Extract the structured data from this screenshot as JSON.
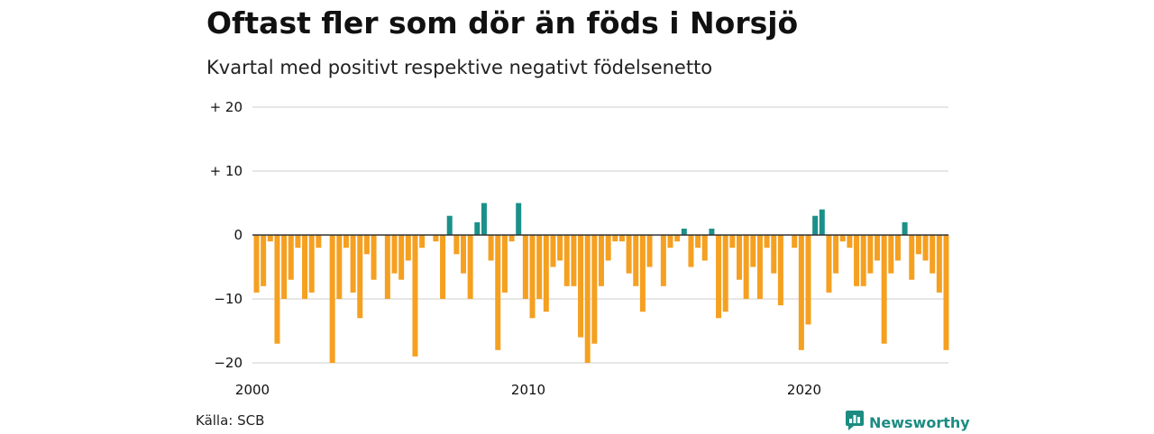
{
  "header": {
    "title": "Oftast fler som dör än föds i Norsjö",
    "subtitle": "Kvartal med positivt respektive negativt födelsenetto"
  },
  "footer": {
    "source": "Källa: SCB",
    "brand": "Newsworthy",
    "brand_icon": "newsworthy-logo-icon"
  },
  "colors": {
    "positive": "#1b9089",
    "negative": "#f5a020",
    "grid": "#dddddd",
    "zero_line": "#333333"
  },
  "chart_data": {
    "type": "bar",
    "title": "Oftast fler som dör än föds i Norsjö",
    "subtitle": "Kvartal med positivt respektive negativt födelsenetto",
    "x_start": "2000 Q1",
    "frequency": "quarterly",
    "x_tick_labels": [
      "2000",
      "2010",
      "2020"
    ],
    "y_ticks": [
      -20,
      -10,
      0,
      10,
      20
    ],
    "y_tick_labels": [
      "−20",
      "−10",
      "0",
      "+ 10",
      "+ 20"
    ],
    "ylim": [
      -20,
      20
    ],
    "grid": true,
    "values": [
      -9,
      -8,
      -1,
      -17,
      -10,
      -7,
      -2,
      -10,
      -9,
      -2,
      0,
      -20,
      -10,
      -2,
      -9,
      -13,
      -3,
      -7,
      0,
      -10,
      -6,
      -7,
      -4,
      -19,
      -2,
      0,
      -1,
      -10,
      3,
      -3,
      -6,
      -10,
      2,
      5,
      -4,
      -18,
      -9,
      -1,
      5,
      -10,
      -13,
      -10,
      -12,
      -5,
      -4,
      -8,
      -8,
      -16,
      -20,
      -17,
      -8,
      -4,
      -1,
      -1,
      -6,
      -8,
      -12,
      -5,
      0,
      -8,
      -2,
      -1,
      1,
      -5,
      -2,
      -4,
      1,
      -13,
      -12,
      -2,
      -7,
      -10,
      -5,
      -10,
      -2,
      -6,
      -11,
      0,
      -2,
      -18,
      -14,
      3,
      4,
      -9,
      -6,
      -1,
      -2,
      -8,
      -8,
      -6,
      -4,
      -17,
      -6,
      -4,
      2,
      -7,
      -3,
      -4,
      -6,
      -9,
      -18
    ]
  }
}
